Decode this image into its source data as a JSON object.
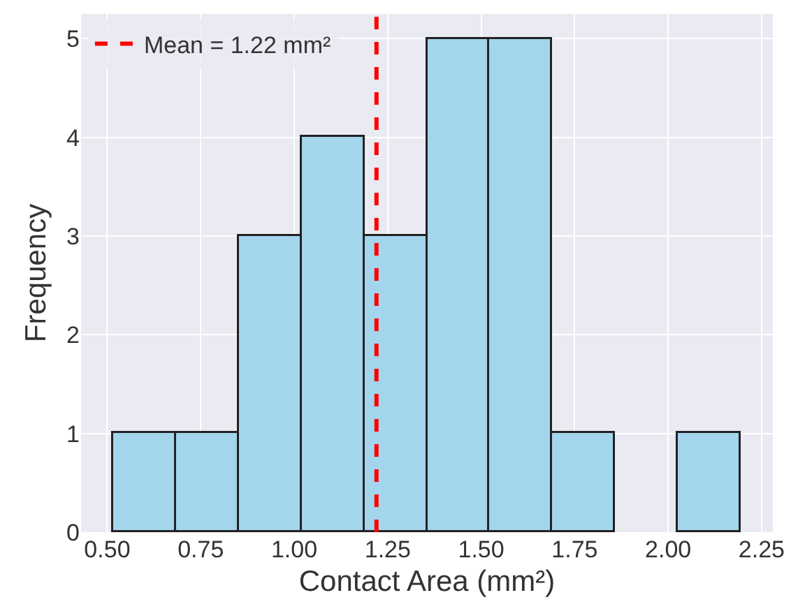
{
  "chart_data": {
    "type": "histogram",
    "xlabel": "Contact Area (mm²)",
    "ylabel": "Frequency",
    "bins": [
      0.515,
      0.683,
      0.851,
      1.019,
      1.187,
      1.355,
      1.523,
      1.691,
      1.859,
      2.027,
      2.195
    ],
    "values": [
      1,
      1,
      3,
      4,
      3,
      5,
      5,
      1,
      0,
      1
    ],
    "color": "#a3d5ec",
    "xlim": [
      0.43,
      2.28
    ],
    "ylim": [
      0,
      5.25
    ],
    "xticks": [
      {
        "value": 0.5,
        "label": "0.50"
      },
      {
        "value": 0.75,
        "label": "0.75"
      },
      {
        "value": 1,
        "label": "1.00"
      },
      {
        "value": 1.25,
        "label": "1.25"
      },
      {
        "value": 1.5,
        "label": "1.50"
      },
      {
        "value": 1.75,
        "label": "1.75"
      },
      {
        "value": 2,
        "label": "2.00"
      },
      {
        "value": 2.25,
        "label": "2.25"
      }
    ],
    "yticks": [
      0,
      1,
      2,
      3,
      4,
      5
    ],
    "ref_lines": [
      {
        "axis": "x",
        "value": 1.22,
        "label": "Mean = 1.22 mm²",
        "color": "#ff0000",
        "line_style": "dashed"
      }
    ],
    "grid": true,
    "legend": "top left"
  }
}
